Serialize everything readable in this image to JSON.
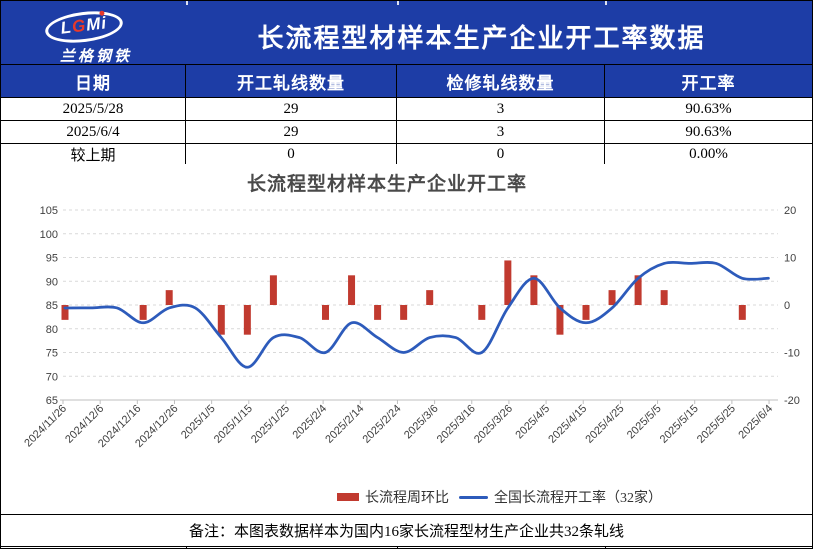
{
  "header": {
    "title": "长流程型材样本生产企业开工率数据",
    "logo_text": "LGMi",
    "logo_subtitle": "兰格钢铁"
  },
  "table": {
    "headers": [
      "日期",
      "开工轧线数量",
      "检修轧线数量",
      "开工率"
    ],
    "rows": [
      [
        "2025/5/28",
        "29",
        "3",
        "90.63%"
      ],
      [
        "2025/6/4",
        "29",
        "3",
        "90.63%"
      ],
      [
        "较上期",
        "0",
        "0",
        "0.00%"
      ]
    ]
  },
  "chart_data": {
    "type": "bar+line combo",
    "title": "长流程型材样本生产企业开工率",
    "legend_position": "bottom",
    "grid": "dashed horizontal",
    "x_tick_labels": [
      "2024/11/26",
      "2024/12/6",
      "2024/12/16",
      "2024/12/26",
      "2025/1/5",
      "2025/1/15",
      "2025/1/25",
      "2025/2/4",
      "2025/2/14",
      "2025/2/24",
      "2025/3/6",
      "2025/3/16",
      "2025/3/26",
      "2025/4/5",
      "2025/4/15",
      "2025/4/25",
      "2025/5/5",
      "2025/5/15",
      "2025/5/25",
      "2025/6/4"
    ],
    "x_dates": [
      "2024/11/27",
      "2024/12/4",
      "2024/12/11",
      "2024/12/18",
      "2024/12/25",
      "2025/1/1",
      "2025/1/8",
      "2025/1/15",
      "2025/1/22",
      "2025/1/29",
      "2025/2/5",
      "2025/2/12",
      "2025/2/19",
      "2025/2/26",
      "2025/3/5",
      "2025/3/12",
      "2025/3/19",
      "2025/3/26",
      "2025/4/2",
      "2025/4/9",
      "2025/4/16",
      "2025/4/23",
      "2025/4/30",
      "2025/5/7",
      "2025/5/14",
      "2025/5/21",
      "2025/5/28",
      "2025/6/4"
    ],
    "series": [
      {
        "name": "长流程周环比",
        "type": "bar",
        "axis": "right",
        "values": [
          -3.13,
          0,
          0,
          -3.13,
          3.13,
          0,
          -6.25,
          -6.25,
          6.25,
          0,
          -3.13,
          6.25,
          -3.13,
          -3.13,
          3.13,
          0,
          -3.13,
          9.38,
          6.25,
          -6.25,
          -3.13,
          3.13,
          6.25,
          3.13,
          0,
          0,
          -3.13,
          0
        ]
      },
      {
        "name": "全国长流程开工率（32家）",
        "type": "line",
        "axis": "left",
        "smooth": true,
        "values": [
          84.38,
          84.38,
          84.38,
          81.25,
          84.38,
          84.38,
          78.13,
          71.88,
          78.13,
          78.13,
          75.0,
          81.25,
          78.13,
          75.0,
          78.13,
          78.13,
          75.0,
          84.38,
          90.63,
          84.38,
          81.25,
          84.38,
          90.63,
          93.75,
          93.75,
          93.75,
          90.63,
          90.63
        ]
      }
    ],
    "left_axis": {
      "min": 65,
      "max": 105,
      "step": 5,
      "ticks": [
        105,
        100,
        95,
        90,
        85,
        80,
        75,
        70,
        65
      ]
    },
    "right_axis": {
      "min": -20,
      "max": 20,
      "step": 10,
      "ticks": [
        20,
        10,
        0,
        -10,
        -20
      ]
    }
  },
  "footer": {
    "note": "备注：本图表数据样本为国内16家长流程型材生产企业共32条轧线"
  },
  "colors": {
    "band_blue": "#1d3da6",
    "bar_red": "#c13a2f",
    "line_blue": "#2d5bbb",
    "grid_gray": "#d9d9d9",
    "axis_gray": "#bfbfbf",
    "axis_text": "#404040",
    "title_gray": "#4a4a4a"
  }
}
